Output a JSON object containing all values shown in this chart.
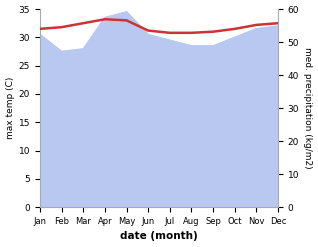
{
  "months": [
    "Jan",
    "Feb",
    "Mar",
    "Apr",
    "May",
    "Jun",
    "Jul",
    "Aug",
    "Sep",
    "Oct",
    "Nov",
    "Dec"
  ],
  "temp_max": [
    31.5,
    31.8,
    32.5,
    33.2,
    33.0,
    31.2,
    30.8,
    30.8,
    31.0,
    31.5,
    32.2,
    32.5
  ],
  "precipitation": [
    52.3,
    47.2,
    48.0,
    57.5,
    59.2,
    52.3,
    50.6,
    48.9,
    48.9,
    51.5,
    54.1,
    54.9
  ],
  "temp_ylim": [
    0,
    35
  ],
  "precip_ylim": [
    0,
    60
  ],
  "temp_yticks": [
    0,
    5,
    10,
    15,
    20,
    25,
    30,
    35
  ],
  "precip_yticks": [
    0,
    10,
    20,
    30,
    40,
    50,
    60
  ],
  "temp_color": "#cc3333",
  "precip_fill_color": "#b8c8f0",
  "ylabel_left": "max temp (C)",
  "ylabel_right": "med. precipitation (kg/m2)",
  "xlabel": "date (month)",
  "bg_color": "#ffffff"
}
